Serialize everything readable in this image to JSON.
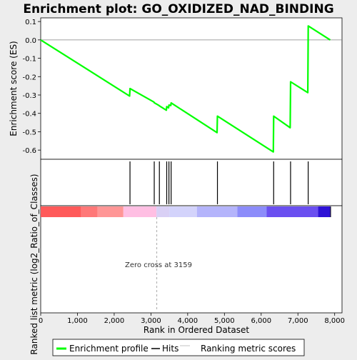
{
  "chart_data": {
    "type": "line",
    "title": "Enrichment plot: GO_OXIDIZED_NAD_BINDING",
    "xlabel": "Rank in Ordered Dataset",
    "ylabel_top": "Enrichment score (ES)",
    "ylabel_bottom": "Ranked list metric (log2_Ratio_of_Classes)",
    "xlim": [
      0,
      8200
    ],
    "ylim": [
      -0.65,
      0.12
    ],
    "x_ticks": [
      0,
      1000,
      2000,
      3000,
      4000,
      5000,
      6000,
      7000,
      8000
    ],
    "x_tick_labels": [
      "0",
      "1,000",
      "2,000",
      "3,000",
      "4,000",
      "5,000",
      "6,000",
      "7,000",
      "8,000"
    ],
    "y_ticks": [
      0.1,
      0.0,
      -0.1,
      -0.2,
      -0.3,
      -0.4,
      -0.5,
      -0.6
    ],
    "y_tick_labels": [
      "0.1",
      "0.0",
      "-0.1",
      "-0.2",
      "-0.3",
      "-0.4",
      "-0.5",
      "-0.6"
    ],
    "series": [
      {
        "name": "Enrichment profile",
        "color": "#00ff00",
        "x": [
          0,
          2420,
          2430,
          3080,
          3090,
          3220,
          3230,
          3420,
          3430,
          3480,
          3490,
          3540,
          3550,
          4800,
          4810,
          6330,
          6340,
          6790,
          6800,
          7270,
          7280,
          7880
        ],
        "y": [
          0.0,
          -0.306,
          -0.265,
          -0.338,
          -0.342,
          -0.357,
          -0.359,
          -0.383,
          -0.363,
          -0.37,
          -0.355,
          -0.357,
          -0.343,
          -0.505,
          -0.415,
          -0.61,
          -0.415,
          -0.478,
          -0.228,
          -0.287,
          0.076,
          0.0
        ]
      }
    ],
    "hits": [
      2430,
      3090,
      3230,
      3430,
      3490,
      3550,
      4810,
      6340,
      6800,
      7280
    ],
    "zero_cross_label": "Zero cross at 3159",
    "zero_cross_x": 3159,
    "metric_bar_end": 7880,
    "metric_bar_segments": [
      {
        "from": 0,
        "to": 1100,
        "color": "#ff5a5a"
      },
      {
        "from": 1100,
        "to": 1550,
        "color": "#ff7878"
      },
      {
        "from": 1550,
        "to": 2250,
        "color": "#ff9696"
      },
      {
        "from": 2250,
        "to": 3150,
        "color": "#ffbfe3"
      },
      {
        "from": 3150,
        "to": 3500,
        "color": "#d9d0f5"
      },
      {
        "from": 3500,
        "to": 4250,
        "color": "#d3d3fb"
      },
      {
        "from": 4250,
        "to": 5350,
        "color": "#b4b4fb"
      },
      {
        "from": 5350,
        "to": 6150,
        "color": "#8c8cfa"
      },
      {
        "from": 6150,
        "to": 7550,
        "color": "#6a4ff0"
      },
      {
        "from": 7550,
        "to": 7880,
        "color": "#2e12d6"
      }
    ],
    "legend": {
      "placement": "bottom",
      "entries": [
        {
          "label": "Enrichment profile",
          "color": "#00ff00"
        },
        {
          "label": "Hits",
          "color": "#000000"
        },
        {
          "label": "Ranking metric scores",
          "color": "#c0c0c0"
        }
      ]
    }
  }
}
